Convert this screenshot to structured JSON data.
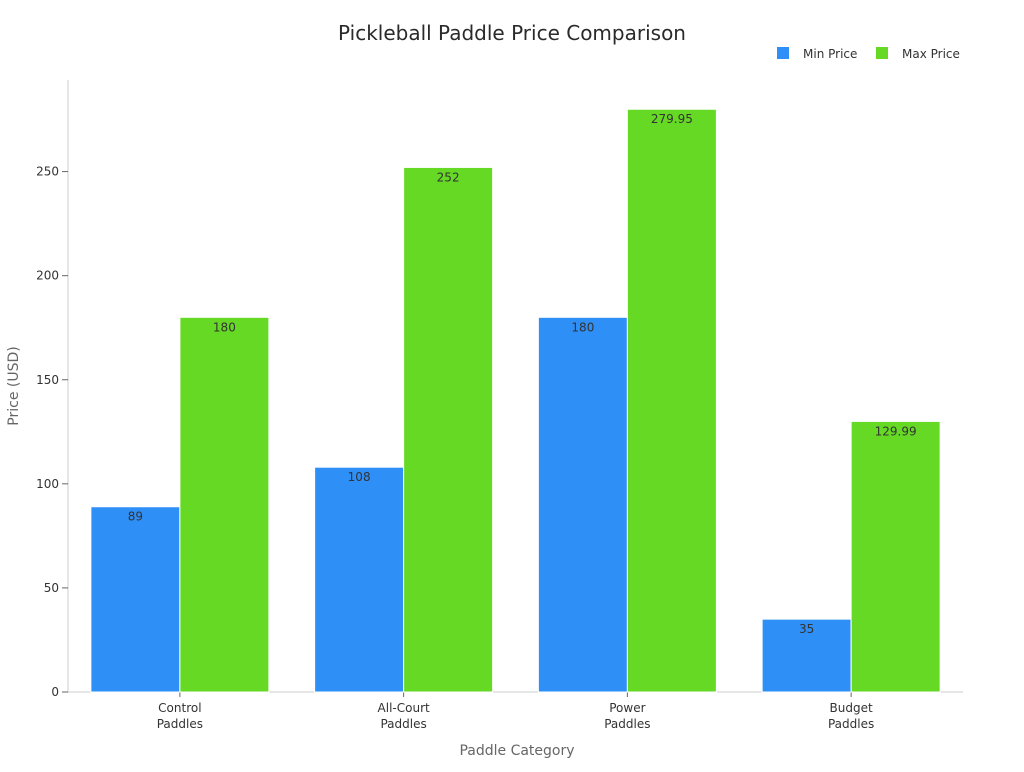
{
  "chart_data": {
    "type": "bar",
    "title": "Pickleball Paddle Price Comparison",
    "xlabel": "Paddle Category",
    "ylabel": "Price (USD)",
    "categories": [
      [
        "Control",
        "Paddles"
      ],
      [
        "All-Court",
        "Paddles"
      ],
      [
        "Power",
        "Paddles"
      ],
      [
        "Budget",
        "Paddles"
      ]
    ],
    "series": [
      {
        "name": "Min Price",
        "color": "#2e8ff7",
        "values": [
          89,
          108,
          180,
          35
        ],
        "labels": [
          "89",
          "108",
          "180",
          "35"
        ]
      },
      {
        "name": "Max Price",
        "color": "#66d925",
        "values": [
          180,
          252,
          279.95,
          129.99
        ],
        "labels": [
          "180",
          "252",
          "279.95",
          "129.99"
        ]
      }
    ],
    "ylim": [
      0,
      294
    ],
    "yticks": [
      0,
      50,
      100,
      150,
      200,
      250
    ],
    "grid": false,
    "legend_position": "top-right"
  }
}
